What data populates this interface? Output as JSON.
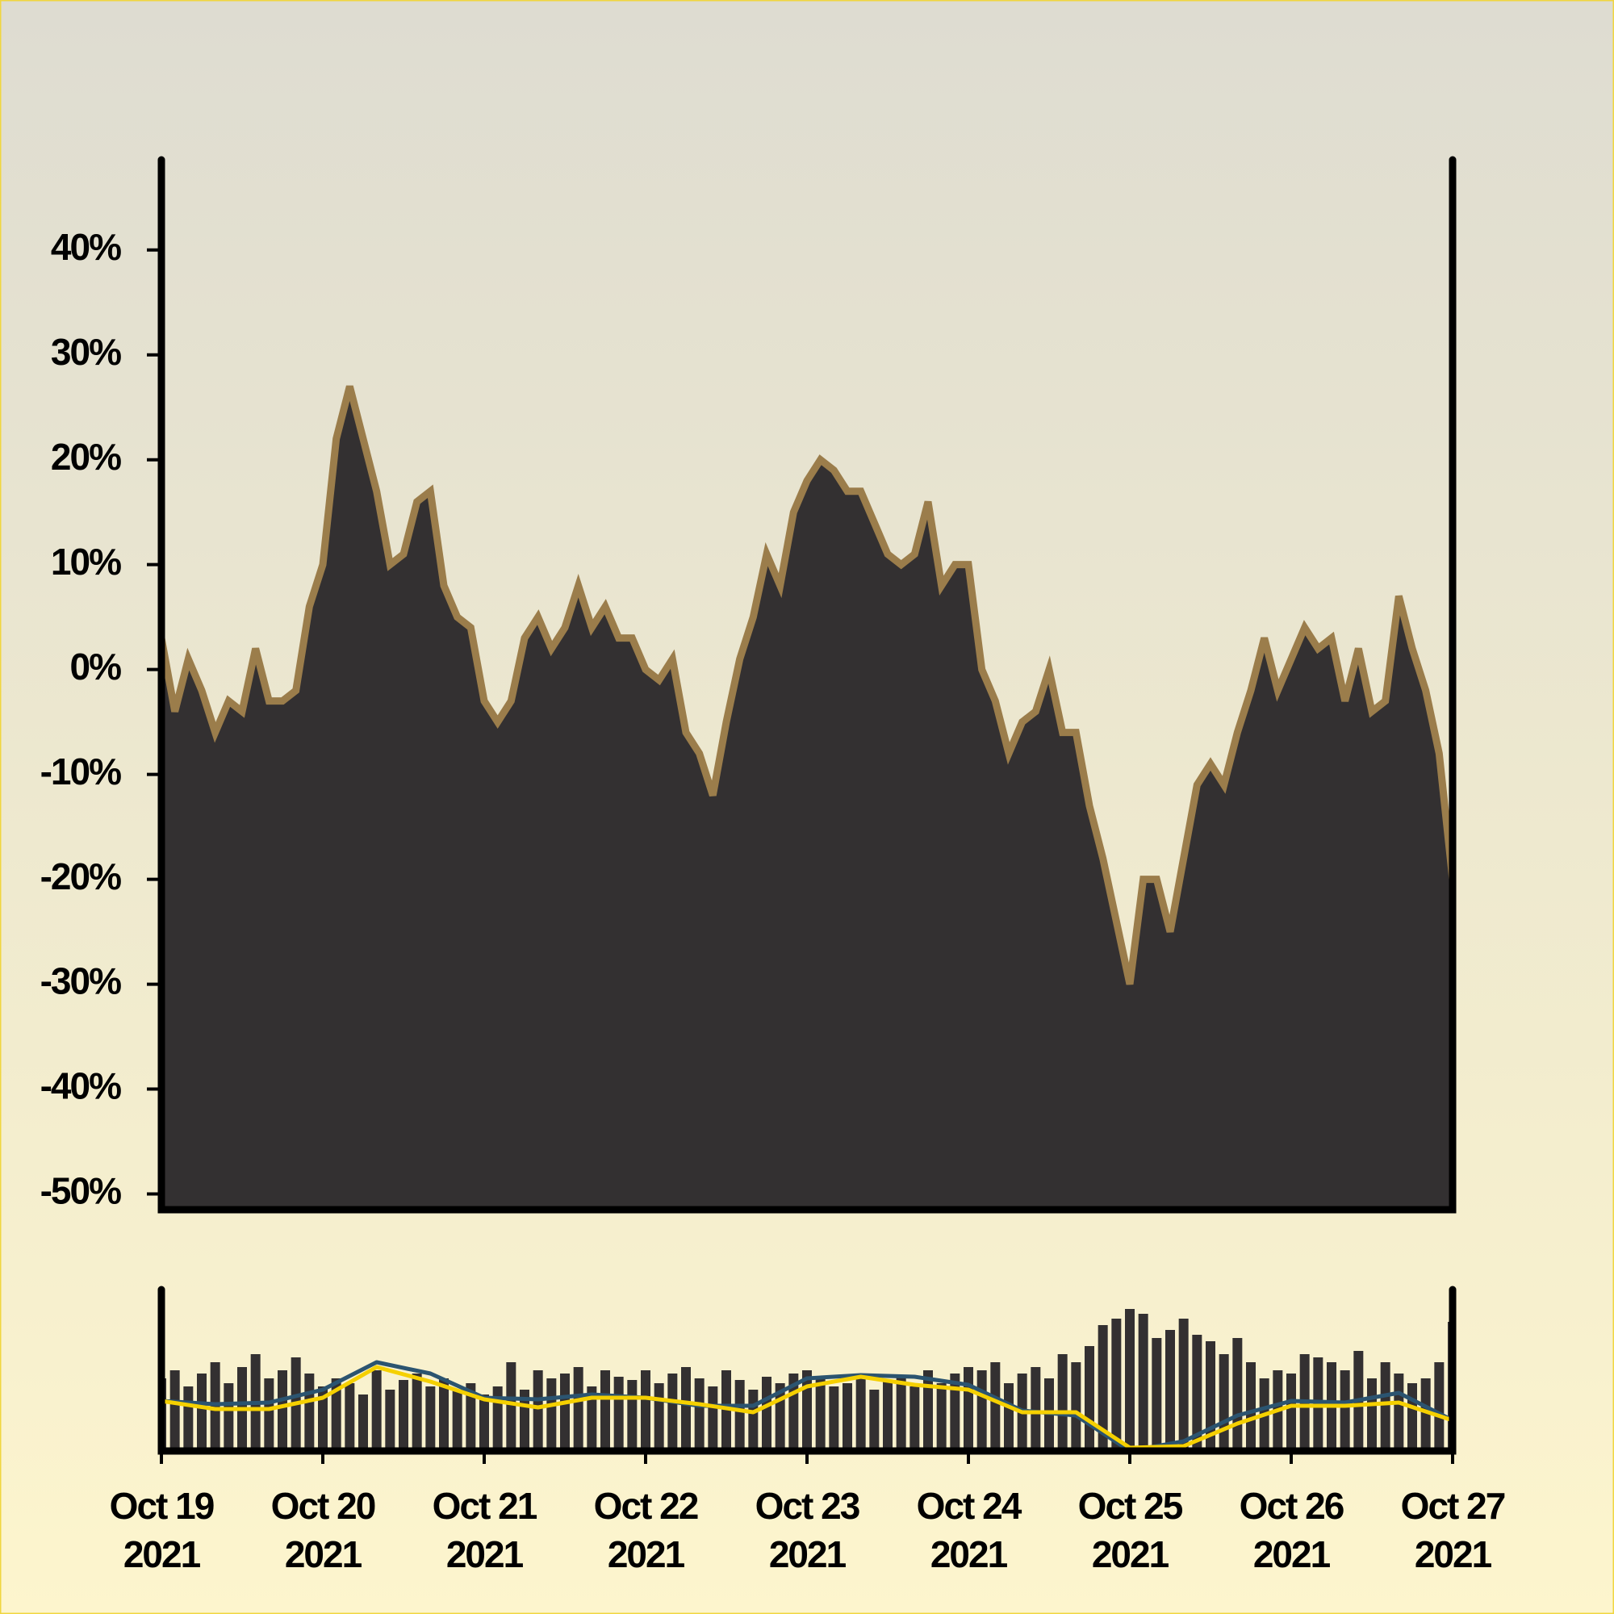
{
  "chart_data": [
    {
      "type": "area",
      "xlim": [
        "2021-10-19",
        "2021-10-27"
      ],
      "ylim": [
        -51.5,
        48.6
      ],
      "yticks": [
        {
          "value": -50,
          "label": "-50%"
        },
        {
          "value": -40,
          "label": "-40%"
        },
        {
          "value": -30,
          "label": "-30%"
        },
        {
          "value": -20,
          "label": "-20%"
        },
        {
          "value": -10,
          "label": "-10%"
        },
        {
          "value": 0,
          "label": "0%"
        },
        {
          "value": 10,
          "label": "10%"
        },
        {
          "value": 20,
          "label": "20%"
        },
        {
          "value": 30,
          "label": "30%"
        },
        {
          "value": 40,
          "label": "40%"
        }
      ],
      "series": [
        {
          "color": "#333031",
          "edge_color": "#9b7d4b",
          "values": [
            3,
            -4,
            1,
            -2,
            -6,
            -3,
            -4,
            2,
            -3,
            -3,
            -2,
            6,
            10,
            22,
            27,
            22,
            17,
            10,
            11,
            16,
            17,
            8,
            5,
            4,
            -3,
            -5,
            -3,
            3,
            5,
            2,
            4,
            8,
            4,
            6,
            3,
            3,
            0,
            -1,
            1,
            -6,
            -8,
            -12,
            -5,
            1,
            5,
            11,
            8,
            15,
            18,
            20,
            19,
            17,
            17,
            14,
            11,
            10,
            11,
            16,
            8,
            10,
            10,
            0,
            -3,
            -8,
            -5,
            -4,
            0,
            -6,
            -6,
            -13,
            -18,
            -24,
            -30,
            -20,
            -20,
            -25,
            -18,
            -11,
            -9,
            -11,
            -6,
            -2,
            3,
            -2,
            1,
            4,
            2,
            3,
            -3,
            2,
            -4,
            -3,
            7,
            2,
            -2,
            -8,
            -20
          ]
        }
      ]
    },
    {
      "type": "bar",
      "xlim": [
        "2021-10-19",
        "2021-10-27"
      ],
      "ylim": [
        0,
        100
      ],
      "xticks": [
        {
          "value": "2021-10-19",
          "label": "Oct 19\n2021"
        },
        {
          "value": "2021-10-20",
          "label": "Oct 20\n2021"
        },
        {
          "value": "2021-10-21",
          "label": "Oct 21\n2021"
        },
        {
          "value": "2021-10-22",
          "label": "Oct 22\n2021"
        },
        {
          "value": "2021-10-23",
          "label": "Oct 23\n2021"
        },
        {
          "value": "2021-10-24",
          "label": "Oct 24\n2021"
        },
        {
          "value": "2021-10-25",
          "label": "Oct 25\n2021"
        },
        {
          "value": "2021-10-26",
          "label": "Oct 26\n2021"
        },
        {
          "value": "2021-10-27",
          "label": "Oct 27\n2021"
        }
      ],
      "color": "#333031",
      "values": [
        45,
        50,
        40,
        48,
        55,
        42,
        52,
        60,
        45,
        50,
        58,
        48,
        40,
        45,
        42,
        35,
        50,
        38,
        44,
        48,
        40,
        45,
        38,
        42,
        35,
        40,
        55,
        38,
        50,
        45,
        48,
        52,
        40,
        50,
        46,
        44,
        50,
        42,
        48,
        52,
        45,
        40,
        50,
        44,
        38,
        46,
        42,
        48,
        50,
        45,
        40,
        42,
        48,
        38,
        44,
        46,
        40,
        50,
        42,
        48,
        52,
        50,
        55,
        42,
        48,
        52,
        45,
        60,
        55,
        65,
        78,
        82,
        88,
        85,
        70,
        75,
        82,
        72,
        68,
        60,
        70,
        55,
        45,
        50,
        48,
        60,
        58,
        55,
        50,
        62,
        45,
        55,
        48,
        42,
        45,
        55,
        80
      ],
      "lines": [
        {
          "color": "#2b5470",
          "values": [
            31,
            29,
            30,
            38,
            55,
            48,
            33,
            32,
            35,
            33,
            28,
            28,
            45,
            47,
            46,
            41,
            25,
            22,
            0,
            6,
            22,
            31,
            30,
            36,
            19
          ]
        },
        {
          "color": "#f5d000",
          "values": [
            31,
            26,
            26,
            33,
            52,
            43,
            32,
            27,
            33,
            33,
            29,
            24,
            40,
            46,
            41,
            38,
            24,
            24,
            2,
            3,
            17,
            28,
            28,
            30,
            19
          ]
        }
      ]
    }
  ]
}
